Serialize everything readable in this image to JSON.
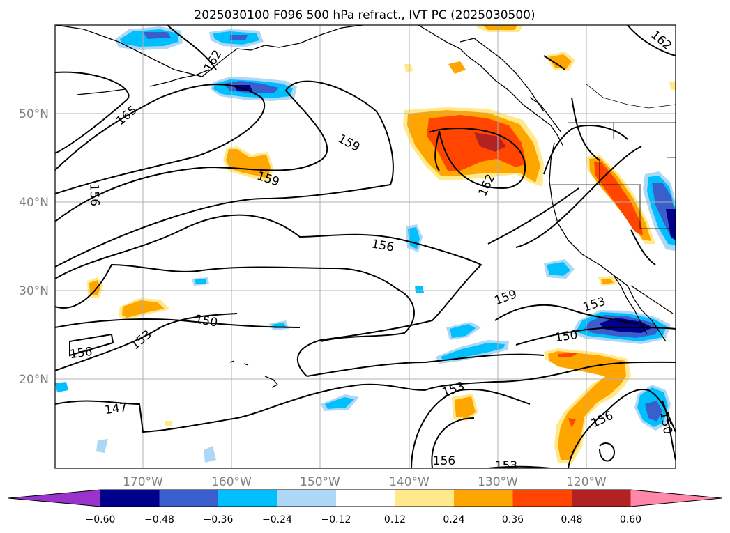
{
  "title": "2025030100 F096 500 hPa refract., IVT PC (2025030500)",
  "lat_labels": [
    "50°N",
    "40°N",
    "30°N",
    "20°N"
  ],
  "lon_labels": [
    "170°W",
    "160°W",
    "150°W",
    "140°W",
    "130°W",
    "120°W"
  ],
  "colorbar": {
    "tick_labels": [
      "−0.60",
      "−0.48",
      "−0.36",
      "−0.24",
      "−0.12",
      "0.12",
      "0.24",
      "0.36",
      "0.48",
      "0.60"
    ],
    "colors": {
      "lt_m060": "#9933cc",
      "m060_m048": "#00008b",
      "m048_m036": "#3a5fcd",
      "m036_m024": "#00bfff",
      "m024_m012": "#add8f5",
      "m012_p012": "#ffffff",
      "p012_p024": "#ffe98a",
      "p024_p036": "#ffa500",
      "p036_p048": "#ff4500",
      "p048_p060": "#b22222",
      "gt_p060": "#ff88aa"
    }
  },
  "contour_labels": [
    "165",
    "162",
    "162",
    "162",
    "159",
    "159",
    "159",
    "156",
    "156",
    "156",
    "156",
    "156",
    "153",
    "153",
    "153",
    "153",
    "150",
    "150",
    "150",
    "147"
  ]
}
